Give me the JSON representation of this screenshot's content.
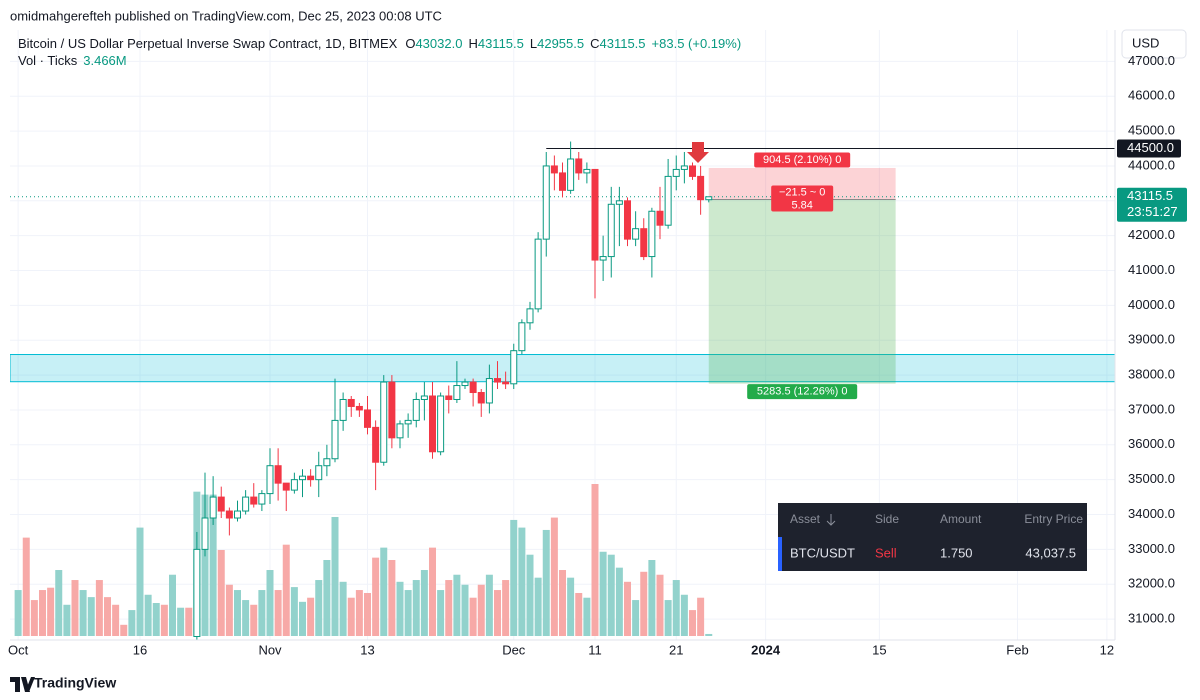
{
  "header": {
    "published": "omidmahgerefteh published on TradingView.com, Dec 25, 2023 00:08 UTC",
    "symbol": "Bitcoin / US Dollar Perpetual Inverse Swap Contract, 1D, BITMEX",
    "ohlc": [
      {
        "k": "O",
        "v": "43032.0"
      },
      {
        "k": "H",
        "v": "43115.5"
      },
      {
        "k": "L",
        "v": "42955.5"
      },
      {
        "k": "C",
        "v": "43115.5"
      }
    ],
    "change": "+83.5 (+0.19%)",
    "vol_label": "Vol · Ticks",
    "vol_value": "3.466M",
    "currency": "USD"
  },
  "chart_data": {
    "type": "candlestick",
    "x": [
      "2023-10-01",
      "2023-10-02",
      "2023-10-03",
      "2023-10-04",
      "2023-10-05",
      "2023-10-06",
      "2023-10-07",
      "2023-10-08",
      "2023-10-09",
      "2023-10-10",
      "2023-10-11",
      "2023-10-12",
      "2023-10-13",
      "2023-10-14",
      "2023-10-15",
      "2023-10-16",
      "2023-10-17",
      "2023-10-18",
      "2023-10-19",
      "2023-10-20",
      "2023-10-21",
      "2023-10-22",
      "2023-10-23",
      "2023-10-24",
      "2023-10-25",
      "2023-10-26",
      "2023-10-27",
      "2023-10-28",
      "2023-10-29",
      "2023-10-30",
      "2023-10-31",
      "2023-11-01",
      "2023-11-02",
      "2023-11-03",
      "2023-11-04",
      "2023-11-05",
      "2023-11-06",
      "2023-11-07",
      "2023-11-08",
      "2023-11-09",
      "2023-11-10",
      "2023-11-11",
      "2023-11-12",
      "2023-11-13",
      "2023-11-14",
      "2023-11-15",
      "2023-11-16",
      "2023-11-17",
      "2023-11-18",
      "2023-11-19",
      "2023-11-20",
      "2023-11-21",
      "2023-11-22",
      "2023-11-23",
      "2023-11-24",
      "2023-11-25",
      "2023-11-26",
      "2023-11-27",
      "2023-11-28",
      "2023-11-29",
      "2023-11-30",
      "2023-12-01",
      "2023-12-02",
      "2023-12-03",
      "2023-12-04",
      "2023-12-05",
      "2023-12-06",
      "2023-12-07",
      "2023-12-08",
      "2023-12-09",
      "2023-12-10",
      "2023-12-11",
      "2023-12-12",
      "2023-12-13",
      "2023-12-14",
      "2023-12-15",
      "2023-12-16",
      "2023-12-17",
      "2023-12-18",
      "2023-12-19",
      "2023-12-20",
      "2023-12-21",
      "2023-12-22",
      "2023-12-23",
      "2023-12-24",
      "2023-12-25"
    ],
    "open": [
      null,
      null,
      null,
      null,
      null,
      null,
      null,
      null,
      null,
      null,
      null,
      null,
      null,
      null,
      null,
      null,
      null,
      null,
      null,
      null,
      null,
      null,
      30500,
      33000,
      33900,
      34500,
      34100,
      33900,
      34100,
      34500,
      34300,
      34600,
      35400,
      34900,
      34700,
      35000,
      35100,
      35000,
      35400,
      35600,
      36700,
      37300,
      37100,
      37000,
      36500,
      35500,
      37800,
      36200,
      36600,
      36700,
      37300,
      37400,
      35800,
      37400,
      37300,
      37700,
      37800,
      37500,
      37200,
      37900,
      37800,
      37750,
      38700,
      39500,
      39900,
      41900,
      44000,
      43800,
      43300,
      44200,
      43800,
      43900,
      41300,
      41400,
      42900,
      43000,
      41900,
      42200,
      41400,
      42700,
      42300,
      43700,
      43900,
      44000,
      43700,
      43032
    ],
    "high": [
      null,
      null,
      null,
      null,
      null,
      null,
      null,
      null,
      null,
      null,
      null,
      null,
      null,
      null,
      null,
      null,
      null,
      null,
      null,
      null,
      null,
      null,
      33500,
      35200,
      35100,
      34800,
      34200,
      34400,
      34700,
      34900,
      34700,
      35900,
      35900,
      34900,
      35200,
      35300,
      35300,
      35800,
      36000,
      37900,
      37500,
      37400,
      37200,
      37400,
      36700,
      38000,
      38000,
      36700,
      36900,
      37500,
      37800,
      37800,
      37500,
      37700,
      38400,
      37900,
      37900,
      37600,
      38300,
      38400,
      38100,
      38900,
      39600,
      40100,
      42100,
      44400,
      44300,
      44100,
      44700,
      44400,
      44100,
      43900,
      42000,
      43400,
      43400,
      43100,
      42700,
      42500,
      42800,
      43400,
      44200,
      44300,
      44400,
      44100,
      44000,
      43115.5
    ],
    "low": [
      null,
      null,
      null,
      null,
      null,
      null,
      null,
      null,
      null,
      null,
      null,
      null,
      null,
      null,
      null,
      null,
      null,
      null,
      null,
      null,
      null,
      null,
      30000,
      32800,
      33700,
      33900,
      33400,
      33800,
      34000,
      34200,
      34100,
      34300,
      34400,
      34100,
      34600,
      34500,
      34800,
      34500,
      35100,
      35500,
      36400,
      36800,
      36800,
      36300,
      34700,
      35400,
      35900,
      35900,
      36200,
      36500,
      36700,
      35600,
      35700,
      36900,
      37200,
      37600,
      37100,
      36800,
      36900,
      37600,
      37600,
      37600,
      38600,
      39300,
      39800,
      41400,
      43300,
      43100,
      43200,
      43600,
      43500,
      40200,
      40700,
      40800,
      41700,
      41700,
      41700,
      41300,
      40800,
      41900,
      42200,
      43300,
      43500,
      43600,
      42600,
      42955.5
    ],
    "close": [
      null,
      null,
      null,
      null,
      null,
      null,
      null,
      null,
      null,
      null,
      null,
      null,
      null,
      null,
      null,
      null,
      null,
      null,
      null,
      null,
      null,
      null,
      33000,
      33900,
      34500,
      34100,
      33900,
      34100,
      34500,
      34300,
      34600,
      35400,
      34900,
      34700,
      35000,
      35100,
      35000,
      35400,
      35600,
      36700,
      37300,
      37100,
      37000,
      36500,
      35500,
      37800,
      36200,
      36600,
      36700,
      37300,
      37400,
      35800,
      37400,
      37300,
      37700,
      37800,
      37500,
      37200,
      37900,
      37800,
      37750,
      38700,
      39500,
      39900,
      41900,
      44000,
      43800,
      43300,
      44200,
      43800,
      43900,
      41300,
      41400,
      42900,
      43000,
      41900,
      42200,
      41400,
      42700,
      42300,
      43700,
      43900,
      44000,
      43700,
      43032,
      43115.5
    ],
    "volume": [
      78,
      167,
      61,
      78,
      82,
      112,
      53,
      95,
      78,
      66,
      95,
      66,
      53,
      19,
      44,
      184,
      70,
      56,
      53,
      104,
      48,
      48,
      245,
      240,
      240,
      146,
      87,
      78,
      61,
      53,
      78,
      112,
      78,
      155,
      83,
      58,
      65,
      95,
      129,
      202,
      92,
      65,
      78,
      73,
      133,
      150,
      129,
      92,
      78,
      95,
      112,
      150,
      78,
      95,
      104,
      87,
      65,
      87,
      104,
      78,
      95,
      197,
      184,
      138,
      99,
      180,
      201,
      112,
      99,
      73,
      65,
      258,
      143,
      138,
      116,
      92,
      61,
      109,
      129,
      104,
      61,
      95,
      70,
      44,
      65,
      3.466
    ],
    "volume_colors": [
      "#92d2cc",
      "#f7a9a7",
      "#f7a9a7",
      "#f7a9a7",
      "#f7a9a7",
      "#92d2cc",
      "#92d2cc",
      "#f7a9a7",
      "#92d2cc",
      "#92d2cc",
      "#f7a9a7",
      "#f7a9a7",
      "#f7a9a7",
      "#f7a9a7",
      "#92d2cc",
      "#92d2cc",
      "#92d2cc",
      "#92d2cc",
      "#f7a9a7",
      "#92d2cc",
      "#92d2cc",
      "#f7a9a7",
      null,
      null,
      null,
      null,
      null,
      null,
      null,
      null,
      null,
      null,
      null,
      null,
      null,
      null,
      null,
      null,
      null,
      null,
      null,
      null,
      null,
      null,
      null,
      null,
      null,
      null,
      null,
      null,
      null,
      null,
      null,
      null,
      null,
      null,
      null,
      null,
      null,
      null,
      null,
      null,
      null,
      null,
      null,
      null,
      null,
      null,
      null,
      null,
      null,
      null,
      null,
      null,
      null,
      null,
      null,
      null,
      null,
      null,
      null,
      null,
      null,
      null,
      null,
      null
    ],
    "up_color": "#089981",
    "down_color": "#f23645",
    "volume_up_color": "#92d2cc",
    "volume_down_color": "#f7a9a7",
    "xlim": [
      "2023-09-30",
      "2024-02-13"
    ],
    "xticks": [
      {
        "value": "2023-10-01",
        "label": "Oct"
      },
      {
        "value": "2023-10-16",
        "label": "16"
      },
      {
        "value": "2023-11-01",
        "label": "Nov"
      },
      {
        "value": "2023-11-13",
        "label": "13"
      },
      {
        "value": "2023-12-01",
        "label": "Dec"
      },
      {
        "value": "2023-12-11",
        "label": "11"
      },
      {
        "value": "2023-12-21",
        "label": "21"
      },
      {
        "value": "2024-01-01",
        "label": "2024"
      },
      {
        "value": "2024-01-15",
        "label": "15"
      },
      {
        "value": "2024-02-01",
        "label": "Feb"
      },
      {
        "value": "2024-02-12",
        "label": "12"
      }
    ],
    "ylim": [
      30400,
      47900
    ],
    "yticks": [
      {
        "value": 31000,
        "label": "31000.0"
      },
      {
        "value": 32000,
        "label": "32000.0"
      },
      {
        "value": 33000,
        "label": "33000.0"
      },
      {
        "value": 34000,
        "label": "34000.0"
      },
      {
        "value": 35000,
        "label": "35000.0"
      },
      {
        "value": 36000,
        "label": "36000.0"
      },
      {
        "value": 37000,
        "label": "37000.0"
      },
      {
        "value": 38000,
        "label": "38000.0"
      },
      {
        "value": 39000,
        "label": "39000.0"
      },
      {
        "value": 40000,
        "label": "40000.0"
      },
      {
        "value": 41000,
        "label": "41000.0"
      },
      {
        "value": 42000,
        "label": "42000.0"
      },
      {
        "value": 43000,
        "label": "43000.0"
      },
      {
        "value": 44000,
        "label": "44000.0"
      },
      {
        "value": 45000,
        "label": "45000.0"
      },
      {
        "value": 46000,
        "label": "46000.0"
      },
      {
        "value": 47000,
        "label": "47000.0"
      }
    ],
    "grid": true,
    "hline": {
      "value": 44500,
      "label": "44500.0",
      "start": "2023-12-05"
    },
    "zone": {
      "low": 37810,
      "high": 38590
    },
    "last_price": {
      "label": "43115.5",
      "countdown": "23:51:27"
    },
    "position": {
      "entry": 43037.5,
      "stop": 43942,
      "target": 37754,
      "start": "2023-12-25",
      "end": "2024-01-17",
      "stop_label": "904.5 (2.10%) 0",
      "pnl_label": "−21.5 ~ 0",
      "ratio_label": "5.84",
      "target_label": "5283.5 (12.26%) 0"
    }
  },
  "panel": {
    "headers": [
      "Asset",
      "Side",
      "Amount",
      "Entry Price"
    ],
    "row": [
      "BTC/USDT",
      "Sell",
      "1.750",
      "43,037.5"
    ]
  },
  "footer": {
    "brand": "TradingView"
  }
}
